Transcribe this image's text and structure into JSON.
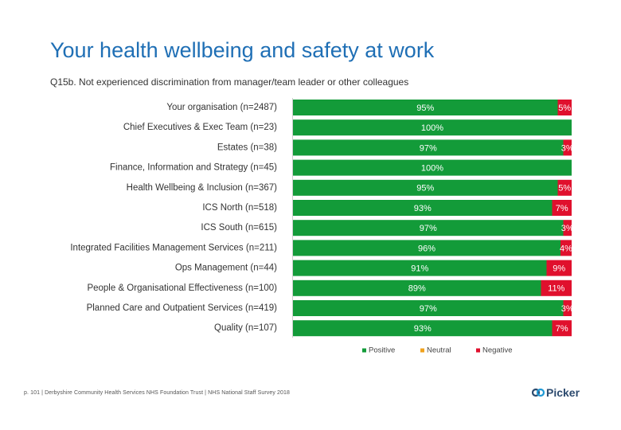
{
  "title": "Your health wellbeing and safety at work",
  "subtitle": "Q15b. Not experienced discrimination from manager/team leader or other colleagues",
  "footer": "p. 101 | Derbyshire Community Health Services NHS Foundation Trust | NHS National Staff Survey 2018",
  "logo_text": "Picker",
  "colors": {
    "positive": "#139b39",
    "neutral": "#f0a21e",
    "negative": "#e0102d"
  },
  "chart_data": {
    "type": "bar",
    "orientation": "horizontal",
    "stacked": true,
    "categories": [
      "Your organisation (n=2487)",
      "Chief Executives & Exec Team (n=23)",
      "Estates (n=38)",
      "Finance, Information and Strategy (n=45)",
      "Health Wellbeing & Inclusion (n=367)",
      "ICS North (n=518)",
      "ICS South (n=615)",
      "Integrated Facilities Management Services (n=211)",
      "Ops Management (n=44)",
      "People & Organisational Effectiveness (n=100)",
      "Planned Care and Outpatient Services (n=419)",
      "Quality (n=107)"
    ],
    "series": [
      {
        "name": "Positive",
        "values": [
          95,
          100,
          97,
          100,
          95,
          93,
          97,
          96,
          91,
          89,
          97,
          93
        ]
      },
      {
        "name": "Neutral",
        "values": [
          0,
          0,
          0,
          0,
          0,
          0,
          0,
          0,
          0,
          0,
          0,
          0
        ]
      },
      {
        "name": "Negative",
        "values": [
          5,
          0,
          3,
          0,
          5,
          7,
          3,
          4,
          9,
          11,
          3,
          7
        ]
      }
    ],
    "value_labels": {
      "Positive": [
        "95%",
        "100%",
        "97%",
        "100%",
        "95%",
        "93%",
        "97%",
        "96%",
        "91%",
        "89%",
        "97%",
        "93%"
      ],
      "Negative": [
        "5%",
        "",
        "3%",
        "",
        "5%",
        "7%",
        "3%",
        "4%",
        "9%",
        "11%",
        "3%",
        "7%"
      ]
    },
    "xlim": [
      0,
      100
    ],
    "legend": [
      "Positive",
      "Neutral",
      "Negative"
    ],
    "legend_position": "bottom"
  }
}
